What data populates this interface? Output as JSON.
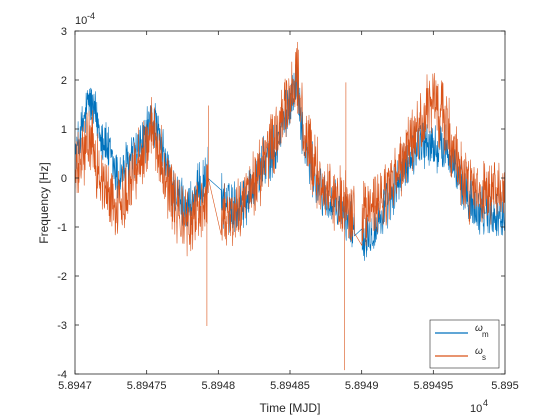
{
  "chart_data": {
    "type": "line",
    "xlabel": "Time [MJD]",
    "ylabel": "Frequency [Hz]",
    "x_exponent_label": "10",
    "x_exponent_power": "4",
    "y_exponent_label": "10",
    "y_exponent_power": "-4",
    "xlim": [
      58947,
      58950
    ],
    "ylim": [
      -0.0004,
      0.0003
    ],
    "x_ticks": [
      58947,
      58947.5,
      58948,
      58948.5,
      58949,
      58949.5,
      58950
    ],
    "x_tick_labels": [
      "5.8947",
      "5.89475",
      "5.8948",
      "5.89485",
      "5.8949",
      "5.89495",
      "5.895"
    ],
    "y_ticks": [
      -0.0004,
      -0.0003,
      -0.0002,
      -0.0001,
      0,
      0.0001,
      0.0002,
      0.0003
    ],
    "y_tick_labels": [
      "-4",
      "-3",
      "-2",
      "-1",
      "0",
      "1",
      "2",
      "3"
    ],
    "grid": false,
    "legend_position": "bottom-right",
    "series": [
      {
        "name": "ω_m",
        "legend_main": "ω",
        "legend_sub": "m",
        "color": "#0072BD",
        "envelope": [
          [
            58947.0,
            4e-05
          ],
          [
            58947.1,
            0.00016
          ],
          [
            58947.2,
            8e-05
          ],
          [
            58947.3,
            0.0
          ],
          [
            58947.45,
            6e-05
          ],
          [
            58947.55,
            0.00012
          ],
          [
            58947.6,
            6e-05
          ],
          [
            58947.7,
            -4e-05
          ],
          [
            58947.8,
            -6e-05
          ],
          [
            58947.95,
            2e-05
          ],
          [
            58948.0,
            -4e-05
          ],
          [
            58948.1,
            -6e-05
          ],
          [
            58948.2,
            -4e-05
          ],
          [
            58948.3,
            2e-05
          ],
          [
            58948.4,
            6e-05
          ],
          [
            58948.5,
            0.00016
          ],
          [
            58948.55,
            0.0002
          ],
          [
            58948.6,
            6e-05
          ],
          [
            58948.7,
            -2e-05
          ],
          [
            58948.8,
            -6e-05
          ],
          [
            58948.9,
            -8e-05
          ],
          [
            58949.0,
            -0.00012
          ],
          [
            58949.1,
            -0.0001
          ],
          [
            58949.2,
            -4e-05
          ],
          [
            58949.3,
            2e-05
          ],
          [
            58949.4,
            8e-05
          ],
          [
            58949.5,
            6e-05
          ],
          [
            58949.6,
            6e-05
          ],
          [
            58949.7,
            -2e-05
          ],
          [
            58949.8,
            -6e-05
          ],
          [
            58950.0,
            -8e-05
          ]
        ],
        "noise": 4.5e-05,
        "gaps": [
          [
            58947.93,
            58948.02
          ],
          [
            58948.95,
            58949.0
          ]
        ]
      },
      {
        "name": "ω_s",
        "legend_main": "ω",
        "legend_sub": "s",
        "color": "#D95319",
        "envelope": [
          [
            58947.0,
            0.0
          ],
          [
            58947.1,
            8e-05
          ],
          [
            58947.2,
            -2e-05
          ],
          [
            58947.3,
            -6e-05
          ],
          [
            58947.45,
            4e-05
          ],
          [
            58947.55,
            0.0001
          ],
          [
            58947.6,
            4e-05
          ],
          [
            58947.7,
            -6e-05
          ],
          [
            58947.8,
            -0.0001
          ],
          [
            58947.95,
            -2e-05
          ],
          [
            58948.0,
            -6e-05
          ],
          [
            58948.1,
            -8e-05
          ],
          [
            58948.2,
            -4e-05
          ],
          [
            58948.3,
            2e-05
          ],
          [
            58948.4,
            8e-05
          ],
          [
            58948.5,
            0.00016
          ],
          [
            58948.55,
            0.00022
          ],
          [
            58948.6,
            8e-05
          ],
          [
            58948.7,
            0.0
          ],
          [
            58948.8,
            -4e-05
          ],
          [
            58948.9,
            -6e-05
          ],
          [
            58949.0,
            -8e-05
          ],
          [
            58949.1,
            -6e-05
          ],
          [
            58949.2,
            -2e-05
          ],
          [
            58949.3,
            4e-05
          ],
          [
            58949.4,
            0.0001
          ],
          [
            58949.5,
            0.00016
          ],
          [
            58949.6,
            0.0001
          ],
          [
            58949.7,
            0.0
          ],
          [
            58949.8,
            -4e-05
          ],
          [
            58950.0,
            -4e-05
          ]
        ],
        "noise": 6e-05,
        "spikes": [
          [
            58947.92,
            -0.000302
          ],
          [
            58947.93,
            0.000148
          ],
          [
            58948.88,
            -0.000392
          ],
          [
            58948.89,
            0.000195
          ]
        ],
        "gaps": [
          [
            58947.93,
            58948.02
          ],
          [
            58948.95,
            58949.0
          ]
        ]
      }
    ]
  }
}
